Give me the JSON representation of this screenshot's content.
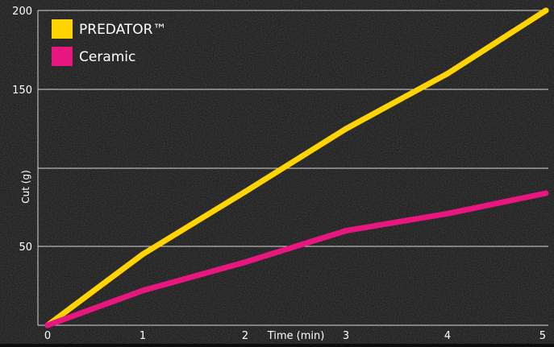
{
  "chart_data": {
    "type": "line",
    "title": "",
    "xlabel": "Time (min)",
    "ylabel": "Cut (g)",
    "xlim": [
      0,
      5
    ],
    "ylim": [
      0,
      200
    ],
    "x_ticks": [
      0,
      1,
      2,
      3,
      4,
      5
    ],
    "x_tick_labels": [
      "0",
      "1",
      "2",
      "3",
      "4",
      "5"
    ],
    "gridlines_y": [
      50,
      100,
      150,
      200
    ],
    "y_tick_labels": [
      {
        "value": 50,
        "label": "50"
      },
      {
        "value": 150,
        "label": "150"
      },
      {
        "value": 200,
        "label": "200"
      }
    ],
    "grid": true,
    "legend_position": "top-left",
    "series": [
      {
        "name": "PREDATOR™",
        "color": "#ffd400",
        "x": [
          0,
          1,
          2,
          3,
          4,
          5
        ],
        "y": [
          0,
          45,
          85,
          125,
          160,
          200
        ]
      },
      {
        "name": "Ceramic",
        "color": "#e8177f",
        "x": [
          0,
          1,
          2,
          3,
          4,
          5
        ],
        "y": [
          0,
          22,
          40,
          60,
          71,
          84
        ]
      }
    ]
  },
  "colors": {
    "background": "#0d0d0d",
    "gridline": "#d8d8d8",
    "text": "#ffffff"
  }
}
